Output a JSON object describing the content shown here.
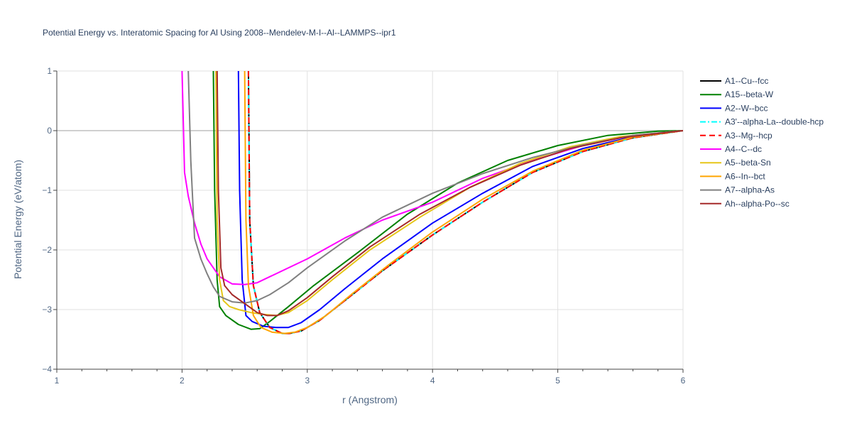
{
  "chart_data": {
    "type": "line",
    "title": "Potential Energy vs. Interatomic Spacing for Al Using 2008--Mendelev-M-I--Al--LAMMPS--ipr1",
    "xlabel": "r (Angstrom)",
    "ylabel": "Potential Energy (eV/atom)",
    "xlim": [
      1,
      6
    ],
    "ylim": [
      -4,
      1
    ],
    "xticks": [
      1,
      2,
      3,
      4,
      5,
      6
    ],
    "yticks": [
      -4,
      -3,
      -2,
      -1,
      0,
      1
    ],
    "xtick_labels": [
      "1",
      "2",
      "3",
      "4",
      "5",
      "6"
    ],
    "ytick_labels": [
      "−4",
      "−3",
      "−2",
      "−1",
      "0",
      "1"
    ],
    "grid": true,
    "legend_position": "right",
    "series": [
      {
        "name": "A1--Cu--fcc",
        "color": "#000000",
        "dash": "solid",
        "x": [
          2.53,
          2.54,
          2.57,
          2.62,
          2.7,
          2.8,
          2.86,
          2.95,
          3.1,
          3.3,
          3.6,
          4.0,
          4.4,
          4.8,
          5.2,
          5.6,
          6.0
        ],
        "y": [
          1.0,
          -1.5,
          -2.6,
          -3.05,
          -3.3,
          -3.4,
          -3.4,
          -3.36,
          -3.18,
          -2.85,
          -2.35,
          -1.75,
          -1.2,
          -0.7,
          -0.35,
          -0.12,
          0.0
        ]
      },
      {
        "name": "A15--beta-W",
        "color": "#008000",
        "dash": "solid",
        "x": [
          2.25,
          2.26,
          2.28,
          2.3,
          2.35,
          2.45,
          2.55,
          2.62,
          2.7,
          2.85,
          3.05,
          3.4,
          3.8,
          4.2,
          4.6,
          5.0,
          5.4,
          5.8,
          6.0
        ],
        "y": [
          1.0,
          -1.0,
          -2.5,
          -2.95,
          -3.1,
          -3.25,
          -3.33,
          -3.32,
          -3.2,
          -2.95,
          -2.6,
          -2.05,
          -1.4,
          -0.88,
          -0.5,
          -0.25,
          -0.08,
          -0.01,
          0.0
        ]
      },
      {
        "name": "A2--W--bcc",
        "color": "#0000ff",
        "dash": "solid",
        "x": [
          2.45,
          2.46,
          2.48,
          2.51,
          2.56,
          2.65,
          2.75,
          2.85,
          2.95,
          3.1,
          3.3,
          3.6,
          4.0,
          4.4,
          4.8,
          5.2,
          5.6,
          6.0
        ],
        "y": [
          1.0,
          -1.0,
          -2.5,
          -3.1,
          -3.2,
          -3.28,
          -3.3,
          -3.3,
          -3.22,
          -3.0,
          -2.65,
          -2.15,
          -1.55,
          -1.05,
          -0.6,
          -0.3,
          -0.1,
          0.0
        ]
      },
      {
        "name": "A3'--alpha-La--double-hcp",
        "color": "#00ffff",
        "dash": "dashdot",
        "x": [
          2.53,
          2.54,
          2.57,
          2.62,
          2.7,
          2.8,
          2.86,
          2.95,
          3.1,
          3.3,
          3.6,
          4.0,
          4.4,
          4.8,
          5.2,
          5.6,
          6.0
        ],
        "y": [
          1.0,
          -1.5,
          -2.6,
          -3.05,
          -3.3,
          -3.4,
          -3.4,
          -3.36,
          -3.18,
          -2.85,
          -2.35,
          -1.75,
          -1.2,
          -0.7,
          -0.35,
          -0.12,
          0.0
        ]
      },
      {
        "name": "A3--Mg--hcp",
        "color": "#ff0000",
        "dash": "dash",
        "x": [
          2.53,
          2.54,
          2.57,
          2.62,
          2.7,
          2.8,
          2.86,
          2.95,
          3.1,
          3.3,
          3.6,
          4.0,
          4.4,
          4.8,
          5.2,
          5.6,
          6.0
        ],
        "y": [
          1.0,
          -1.5,
          -2.6,
          -3.05,
          -3.3,
          -3.4,
          -3.4,
          -3.36,
          -3.18,
          -2.85,
          -2.35,
          -1.75,
          -1.2,
          -0.7,
          -0.35,
          -0.12,
          0.0
        ]
      },
      {
        "name": "A4--C--dc",
        "color": "#ff00ff",
        "dash": "solid",
        "x": [
          2.0,
          2.02,
          2.05,
          2.1,
          2.15,
          2.2,
          2.3,
          2.4,
          2.5,
          2.6,
          2.75,
          3.0,
          3.3,
          3.6,
          4.0,
          4.4,
          4.8,
          5.2,
          5.6,
          6.0
        ],
        "y": [
          1.0,
          -0.7,
          -1.1,
          -1.55,
          -1.9,
          -2.15,
          -2.45,
          -2.57,
          -2.58,
          -2.55,
          -2.4,
          -2.15,
          -1.8,
          -1.5,
          -1.2,
          -0.8,
          -0.5,
          -0.25,
          -0.08,
          0.0
        ]
      },
      {
        "name": "A5--beta-Sn",
        "color": "#e6c619",
        "dash": "solid",
        "x": [
          2.27,
          2.28,
          2.3,
          2.33,
          2.38,
          2.45,
          2.55,
          2.65,
          2.75,
          2.85,
          3.0,
          3.2,
          3.5,
          3.9,
          4.3,
          4.7,
          5.1,
          5.5,
          6.0
        ],
        "y": [
          1.0,
          -1.5,
          -2.5,
          -2.85,
          -2.95,
          -3.0,
          -3.05,
          -3.08,
          -3.1,
          -3.05,
          -2.85,
          -2.5,
          -2.0,
          -1.45,
          -0.95,
          -0.55,
          -0.27,
          -0.1,
          0.0
        ]
      },
      {
        "name": "A6--In--bct",
        "color": "#ffa500",
        "dash": "solid",
        "x": [
          2.5,
          2.51,
          2.53,
          2.57,
          2.63,
          2.72,
          2.82,
          2.9,
          3.0,
          3.15,
          3.35,
          3.65,
          4.0,
          4.4,
          4.8,
          5.2,
          5.6,
          6.0
        ],
        "y": [
          1.0,
          -1.5,
          -2.6,
          -3.1,
          -3.3,
          -3.38,
          -3.4,
          -3.38,
          -3.3,
          -3.1,
          -2.75,
          -2.25,
          -1.7,
          -1.15,
          -0.68,
          -0.33,
          -0.11,
          0.0
        ]
      },
      {
        "name": "A7--alpha-As",
        "color": "#808080",
        "dash": "solid",
        "x": [
          2.05,
          2.07,
          2.1,
          2.15,
          2.2,
          2.25,
          2.3,
          2.4,
          2.5,
          2.6,
          2.7,
          2.85,
          3.0,
          3.3,
          3.6,
          4.0,
          4.4,
          4.8,
          5.2,
          5.6,
          6.0
        ],
        "y": [
          1.0,
          -0.5,
          -1.8,
          -2.15,
          -2.4,
          -2.62,
          -2.78,
          -2.87,
          -2.89,
          -2.85,
          -2.75,
          -2.55,
          -2.3,
          -1.85,
          -1.45,
          -1.05,
          -0.72,
          -0.45,
          -0.24,
          -0.08,
          0.0
        ]
      },
      {
        "name": "Ah--alpha-Po--sc",
        "color": "#a52a2a",
        "dash": "solid",
        "x": [
          2.28,
          2.29,
          2.31,
          2.34,
          2.4,
          2.5,
          2.6,
          2.68,
          2.76,
          2.85,
          3.0,
          3.2,
          3.5,
          3.9,
          4.3,
          4.7,
          5.1,
          5.5,
          6.0
        ],
        "y": [
          1.0,
          -1.0,
          -2.3,
          -2.6,
          -2.75,
          -2.9,
          -3.05,
          -3.1,
          -3.1,
          -3.02,
          -2.8,
          -2.45,
          -1.95,
          -1.4,
          -0.95,
          -0.58,
          -0.3,
          -0.12,
          0.0
        ]
      }
    ]
  }
}
